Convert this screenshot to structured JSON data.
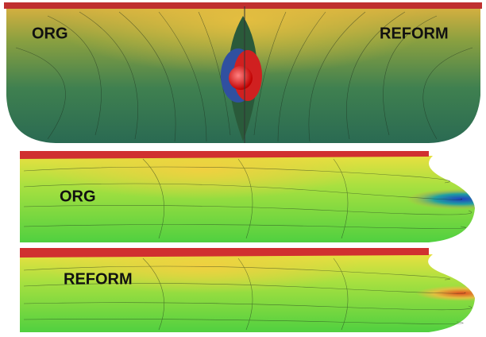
{
  "panels": [
    {
      "labels": [
        "ORG",
        "REFORM"
      ]
    },
    {
      "label": "ORG"
    },
    {
      "label": "REFORM"
    }
  ]
}
